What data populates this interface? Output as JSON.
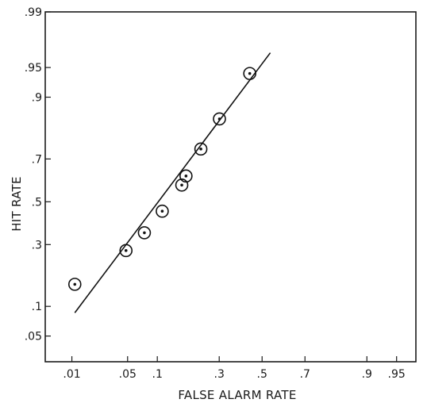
{
  "chart_data": {
    "type": "scatter",
    "scale": "normal-probability (z) on both axes",
    "xlabel": "FALSE ALARM RATE",
    "ylabel": "HIT RATE",
    "xlim": [
      0.004,
      0.97
    ],
    "ylim": [
      0.025,
      0.99
    ],
    "x_ticks": [
      {
        "value": 0.01,
        "label": ".01"
      },
      {
        "value": 0.05,
        "label": ".05"
      },
      {
        "value": 0.1,
        "label": ".1"
      },
      {
        "value": 0.3,
        "label": ".3"
      },
      {
        "value": 0.5,
        "label": ".5"
      },
      {
        "value": 0.7,
        "label": ".7"
      },
      {
        "value": 0.9,
        "label": ".9"
      },
      {
        "value": 0.95,
        "label": ".95"
      }
    ],
    "y_ticks": [
      {
        "value": 0.05,
        "label": ".05"
      },
      {
        "value": 0.1,
        "label": ".1"
      },
      {
        "value": 0.3,
        "label": ".3"
      },
      {
        "value": 0.5,
        "label": ".5"
      },
      {
        "value": 0.7,
        "label": ".7"
      },
      {
        "value": 0.9,
        "label": ".9"
      },
      {
        "value": 0.95,
        "label": ".95"
      },
      {
        "value": 0.99,
        "label": ".99"
      }
    ],
    "points": [
      {
        "x": 0.011,
        "y": 0.156
      },
      {
        "x": 0.048,
        "y": 0.275
      },
      {
        "x": 0.075,
        "y": 0.352
      },
      {
        "x": 0.111,
        "y": 0.454
      },
      {
        "x": 0.163,
        "y": 0.581
      },
      {
        "x": 0.176,
        "y": 0.624
      },
      {
        "x": 0.227,
        "y": 0.741
      },
      {
        "x": 0.301,
        "y": 0.845
      },
      {
        "x": 0.44,
        "y": 0.942
      }
    ],
    "fit_line": [
      {
        "x": 0.011,
        "y": 0.087
      },
      {
        "x": 0.54,
        "y": 0.966
      }
    ],
    "grid": false,
    "legend": "none"
  }
}
